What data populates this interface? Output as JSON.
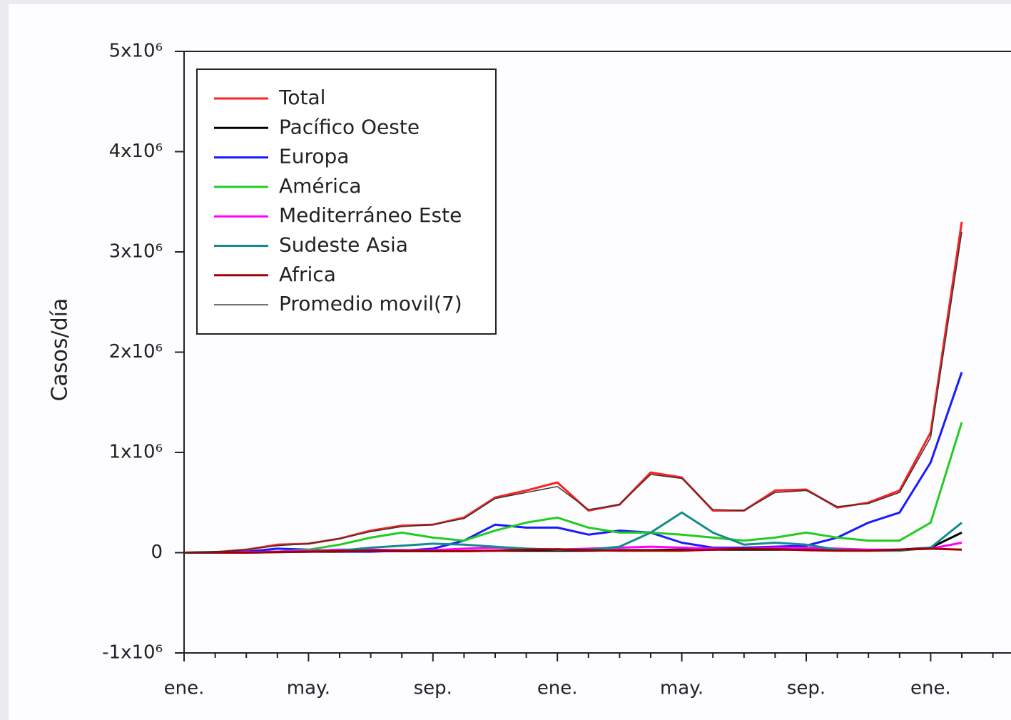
{
  "chart_data": {
    "type": "line",
    "y_label": "Casos/día",
    "legend": "upper left",
    "categories": [
      "ene.",
      null,
      null,
      null,
      "may.",
      null,
      null,
      null,
      "sep.",
      null,
      null,
      null,
      "ene.",
      null,
      null,
      null,
      "may.",
      null,
      null,
      null,
      "sep.",
      null,
      null,
      null,
      "ene.",
      null,
      null
    ],
    "ylim": [
      -1000000,
      5000000
    ],
    "yticks": [
      {
        "value": -1000000,
        "label": "-1x10⁶"
      },
      0,
      {
        "value": 1000000,
        "label": "1x10⁶"
      },
      {
        "value": 2000000,
        "label": "2x10⁶"
      },
      {
        "value": 3000000,
        "label": "3x10⁶"
      },
      {
        "value": 4000000,
        "label": "4x10⁶"
      },
      {
        "value": 5000000,
        "label": "5x10⁶"
      }
    ],
    "series": [
      {
        "name": "Total",
        "color": "#ff2020",
        "values": [
          0,
          5000,
          30000,
          80000,
          90000,
          140000,
          220000,
          270000,
          280000,
          350000,
          550000,
          620000,
          700000,
          420000,
          480000,
          800000,
          750000,
          420000,
          420000,
          620000,
          630000,
          450000,
          500000,
          620000,
          1200000,
          3300000,
          null
        ]
      },
      {
        "name": "Pacífico Oeste",
        "color": "#000000",
        "values": [
          0,
          5000,
          5000,
          10000,
          10000,
          10000,
          15000,
          15000,
          15000,
          15000,
          20000,
          20000,
          20000,
          20000,
          25000,
          25000,
          30000,
          30000,
          30000,
          30000,
          30000,
          25000,
          25000,
          30000,
          50000,
          200000,
          null
        ]
      },
      {
        "name": "Europa",
        "color": "#1a1aff",
        "values": [
          0,
          0,
          10000,
          40000,
          30000,
          10000,
          10000,
          20000,
          40000,
          120000,
          280000,
          250000,
          250000,
          180000,
          220000,
          200000,
          100000,
          50000,
          50000,
          60000,
          70000,
          150000,
          300000,
          400000,
          900000,
          1800000,
          null
        ]
      },
      {
        "name": "América",
        "color": "#22cc22",
        "values": [
          0,
          0,
          0,
          10000,
          30000,
          80000,
          150000,
          200000,
          150000,
          120000,
          220000,
          300000,
          350000,
          250000,
          200000,
          200000,
          180000,
          150000,
          120000,
          150000,
          200000,
          150000,
          120000,
          120000,
          300000,
          1300000,
          null
        ]
      },
      {
        "name": "Mediterráneo Este",
        "color": "#ff00ff",
        "values": [
          0,
          0,
          5000,
          10000,
          20000,
          30000,
          30000,
          25000,
          25000,
          40000,
          50000,
          40000,
          30000,
          40000,
          50000,
          60000,
          50000,
          40000,
          40000,
          50000,
          50000,
          40000,
          30000,
          30000,
          40000,
          100000,
          null
        ]
      },
      {
        "name": "Sudeste Asia",
        "color": "#138c8c",
        "values": [
          0,
          0,
          0,
          5000,
          10000,
          20000,
          50000,
          70000,
          90000,
          80000,
          60000,
          40000,
          30000,
          30000,
          60000,
          200000,
          400000,
          200000,
          80000,
          100000,
          80000,
          30000,
          20000,
          20000,
          50000,
          300000,
          null
        ]
      },
      {
        "name": "Africa",
        "color": "#a00000",
        "values": [
          0,
          0,
          0,
          5000,
          10000,
          15000,
          20000,
          20000,
          15000,
          15000,
          20000,
          30000,
          35000,
          25000,
          20000,
          20000,
          20000,
          30000,
          40000,
          35000,
          25000,
          20000,
          20000,
          30000,
          40000,
          30000,
          null
        ]
      },
      {
        "name": "Promedio movil(7)",
        "color": "#333333",
        "values": [
          0,
          5000,
          30000,
          70000,
          90000,
          140000,
          210000,
          260000,
          280000,
          340000,
          540000,
          600000,
          660000,
          430000,
          480000,
          780000,
          740000,
          430000,
          420000,
          600000,
          620000,
          460000,
          490000,
          600000,
          1150000,
          3200000,
          null
        ]
      }
    ]
  }
}
